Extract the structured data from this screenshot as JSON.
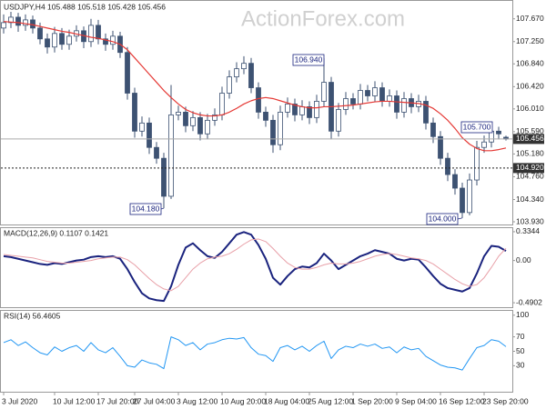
{
  "chart_data": [
    {
      "type": "candlestick",
      "title": "USDJPY,H4 105.488 105.518 105.428 105.456",
      "watermark": "ActionForex.com",
      "categories": [
        "3 Jul 2020",
        null,
        null,
        null,
        null,
        null,
        null,
        "10 Jul 12:00",
        null,
        null,
        null,
        null,
        null,
        "17 Jul 20:00",
        null,
        null,
        null,
        null,
        "27 Jul 04:00",
        null,
        null,
        null,
        null,
        null,
        "3 Aug 12:00",
        null,
        null,
        null,
        null,
        null,
        "10 Aug 20:00",
        null,
        null,
        null,
        null,
        null,
        "18 Aug 04:00",
        null,
        null,
        null,
        null,
        null,
        "25 Aug 12:00",
        null,
        null,
        null,
        null,
        null,
        "1 Sep 20:00",
        null,
        null,
        null,
        null,
        null,
        "9 Sep 04:00",
        null,
        null,
        null,
        null,
        null,
        "16 Sep 12:00",
        null,
        null,
        null,
        null,
        null,
        "23 Sep 20:00",
        null,
        null,
        null
      ],
      "open": [
        107.5,
        107.6,
        107.7,
        107.55,
        107.65,
        107.5,
        107.3,
        107.15,
        107.4,
        107.2,
        107.35,
        107.45,
        107.25,
        107.55,
        107.3,
        107.2,
        107.35,
        107.05,
        106.3,
        105.6,
        105.75,
        105.3,
        105.1,
        104.4,
        105.9,
        105.95,
        105.7,
        105.85,
        105.55,
        105.8,
        105.9,
        106.3,
        106.6,
        106.75,
        106.85,
        106.4,
        105.95,
        105.8,
        105.35,
        105.95,
        106.1,
        105.9,
        106.05,
        105.85,
        106.15,
        106.5,
        105.6,
        106.0,
        106.2,
        106.1,
        106.35,
        106.25,
        106.4,
        106.15,
        106.25,
        105.95,
        106.2,
        106.05,
        106.15,
        105.75,
        105.5,
        105.1,
        104.8,
        104.55,
        104.1,
        104.7,
        105.3,
        105.4,
        105.6,
        105.488
      ],
      "high": [
        107.75,
        107.8,
        107.78,
        107.75,
        107.73,
        107.6,
        107.4,
        107.52,
        107.5,
        107.47,
        107.55,
        107.53,
        107.67,
        107.65,
        107.4,
        107.45,
        107.43,
        107.15,
        106.4,
        105.87,
        105.85,
        105.4,
        105.2,
        106.45,
        106.07,
        106.05,
        105.97,
        105.95,
        105.92,
        106.02,
        106.42,
        106.72,
        106.87,
        106.98,
        106.95,
        106.5,
        106.05,
        105.9,
        106.07,
        106.22,
        106.2,
        106.17,
        106.15,
        106.27,
        106.94,
        106.6,
        106.12,
        106.32,
        106.3,
        106.47,
        106.45,
        106.52,
        106.5,
        106.37,
        106.35,
        106.32,
        106.3,
        106.27,
        106.25,
        105.85,
        105.6,
        105.2,
        104.9,
        104.65,
        104.82,
        105.42,
        105.52,
        105.7,
        105.68,
        105.518
      ],
      "low": [
        107.4,
        107.5,
        107.43,
        107.45,
        107.4,
        107.2,
        107.03,
        107.05,
        107.1,
        107.1,
        107.25,
        107.13,
        107.15,
        107.2,
        107.08,
        107.1,
        106.95,
        106.18,
        105.48,
        105.5,
        105.18,
        105.0,
        104.18,
        104.35,
        105.8,
        105.58,
        105.6,
        105.43,
        105.45,
        105.7,
        105.8,
        106.2,
        106.5,
        106.65,
        106.3,
        105.83,
        105.68,
        105.2,
        105.25,
        105.85,
        105.78,
        105.8,
        105.73,
        105.75,
        106.05,
        105.45,
        105.5,
        105.9,
        106.0,
        106.0,
        106.15,
        106.15,
        106.05,
        106.05,
        105.83,
        105.85,
        105.93,
        105.95,
        105.63,
        105.38,
        104.98,
        104.68,
        104.43,
        104.0,
        104.05,
        104.6,
        105.2,
        105.3,
        105.45,
        105.428
      ],
      "close": [
        107.6,
        107.7,
        107.55,
        107.65,
        107.5,
        107.3,
        107.15,
        107.4,
        107.2,
        107.35,
        107.45,
        107.25,
        107.55,
        107.3,
        107.2,
        107.35,
        107.05,
        106.3,
        105.6,
        105.75,
        105.3,
        105.1,
        104.4,
        105.9,
        105.95,
        105.7,
        105.85,
        105.55,
        105.8,
        105.9,
        106.3,
        106.6,
        106.75,
        106.85,
        106.4,
        105.95,
        105.8,
        105.35,
        105.95,
        106.1,
        105.9,
        106.05,
        105.85,
        106.15,
        106.5,
        105.6,
        106.0,
        106.2,
        106.1,
        106.35,
        106.25,
        106.4,
        106.15,
        106.25,
        105.95,
        106.2,
        106.05,
        106.15,
        105.75,
        105.5,
        105.1,
        104.8,
        104.55,
        104.1,
        104.7,
        105.3,
        105.4,
        105.6,
        105.55,
        105.456
      ],
      "color": "#3d5272",
      "ma": {
        "color": "#e53935",
        "values": [
          107.62,
          107.61,
          107.6,
          107.58,
          107.56,
          107.53,
          107.5,
          107.47,
          107.44,
          107.42,
          107.39,
          107.36,
          107.33,
          107.31,
          107.28,
          107.25,
          107.2,
          107.1,
          106.95,
          106.8,
          106.65,
          106.5,
          106.35,
          106.22,
          106.1,
          106.0,
          105.94,
          105.9,
          105.88,
          105.88,
          105.9,
          105.95,
          106.02,
          106.1,
          106.16,
          106.2,
          106.22,
          106.2,
          106.16,
          106.12,
          106.08,
          106.05,
          106.03,
          106.03,
          106.05,
          106.05,
          106.06,
          106.07,
          106.08,
          106.1,
          106.12,
          106.14,
          106.15,
          106.15,
          106.14,
          106.13,
          106.12,
          106.11,
          106.08,
          106.02,
          105.92,
          105.8,
          105.65,
          105.48,
          105.36,
          105.28,
          105.24,
          105.24,
          105.26,
          105.29
        ]
      },
      "ylim": [
        103.88,
        108.0
      ],
      "yticks": [
        {
          "value": 107.67,
          "label": "107.670"
        },
        {
          "value": 107.25,
          "label": "107.250"
        },
        {
          "value": 106.84,
          "label": "106.840"
        },
        {
          "value": 106.42,
          "label": "106.420"
        },
        {
          "value": 106.01,
          "label": "106.010"
        },
        {
          "value": 105.59,
          "label": "105.590"
        },
        {
          "value": 105.18,
          "label": "105.180"
        },
        {
          "value": 104.76,
          "label": "104.760"
        },
        {
          "value": 104.34,
          "label": "104.340"
        },
        {
          "value": 103.93,
          "label": "103.930"
        }
      ],
      "price_markers": [
        {
          "value": 105.456,
          "label": "105.456"
        },
        {
          "value": 104.92,
          "label": "104.920"
        }
      ],
      "annotations": [
        "106.940",
        "104.180",
        "105.700",
        "104.000"
      ]
    },
    {
      "type": "line",
      "title": "MACD(12,26,9) 0.1107 0.1421",
      "series": [
        {
          "color": "#1a237e",
          "values": [
            0.05,
            0.04,
            0.02,
            0.0,
            -0.02,
            -0.04,
            -0.05,
            -0.03,
            -0.04,
            -0.02,
            0.0,
            0.01,
            0.04,
            0.05,
            0.04,
            0.05,
            0.02,
            -0.1,
            -0.25,
            -0.38,
            -0.44,
            -0.46,
            -0.47,
            -0.3,
            -0.05,
            0.15,
            0.2,
            0.12,
            0.05,
            0.03,
            0.1,
            0.2,
            0.3,
            0.33,
            0.3,
            0.18,
            0.02,
            -0.2,
            -0.28,
            -0.18,
            -0.1,
            -0.07,
            -0.08,
            -0.03,
            0.08,
            0.0,
            -0.1,
            -0.05,
            0.0,
            0.05,
            0.08,
            0.12,
            0.1,
            0.08,
            0.02,
            0.0,
            0.02,
            0.01,
            -0.08,
            -0.18,
            -0.27,
            -0.32,
            -0.34,
            -0.36,
            -0.32,
            -0.15,
            0.05,
            0.17,
            0.16,
            0.1107
          ]
        },
        {
          "color": "#e8a0a8",
          "values": [
            0.07,
            0.06,
            0.05,
            0.04,
            0.03,
            0.01,
            -0.01,
            -0.02,
            -0.03,
            -0.03,
            -0.02,
            -0.01,
            0.0,
            0.02,
            0.03,
            0.04,
            0.04,
            0.01,
            -0.05,
            -0.13,
            -0.21,
            -0.28,
            -0.33,
            -0.35,
            -0.3,
            -0.2,
            -0.1,
            -0.03,
            0.02,
            0.04,
            0.05,
            0.08,
            0.13,
            0.19,
            0.24,
            0.25,
            0.22,
            0.14,
            0.05,
            -0.03,
            -0.08,
            -0.1,
            -0.1,
            -0.08,
            -0.05,
            -0.03,
            -0.04,
            -0.04,
            -0.03,
            -0.01,
            0.02,
            0.05,
            0.07,
            0.08,
            0.07,
            0.05,
            0.03,
            0.02,
            0.0,
            -0.04,
            -0.1,
            -0.16,
            -0.22,
            -0.27,
            -0.3,
            -0.28,
            -0.2,
            -0.08,
            0.05,
            0.1421
          ]
        }
      ],
      "ylim": [
        -0.542,
        0.376
      ],
      "yticks": [
        0.3344,
        {
          "value": 0,
          "label": "0.00"
        },
        -0.4902
      ]
    },
    {
      "type": "line",
      "title": "RSI(14) 56.4605",
      "series": [
        {
          "color": "#2196f3",
          "values": [
            62,
            66,
            58,
            63,
            55,
            48,
            45,
            56,
            50,
            55,
            58,
            50,
            62,
            52,
            48,
            55,
            43,
            30,
            28,
            38,
            34,
            32,
            26,
            70,
            66,
            58,
            62,
            52,
            60,
            62,
            66,
            68,
            67,
            69,
            55,
            46,
            44,
            36,
            55,
            58,
            52,
            57,
            50,
            58,
            64,
            40,
            52,
            57,
            55,
            60,
            57,
            60,
            54,
            56,
            48,
            56,
            52,
            54,
            43,
            37,
            31,
            28,
            27,
            24,
            40,
            55,
            58,
            66,
            64,
            56.4605
          ]
        }
      ],
      "ylim": [
        -6,
        106
      ],
      "yticks": [
        100,
        70,
        50,
        30
      ]
    }
  ]
}
